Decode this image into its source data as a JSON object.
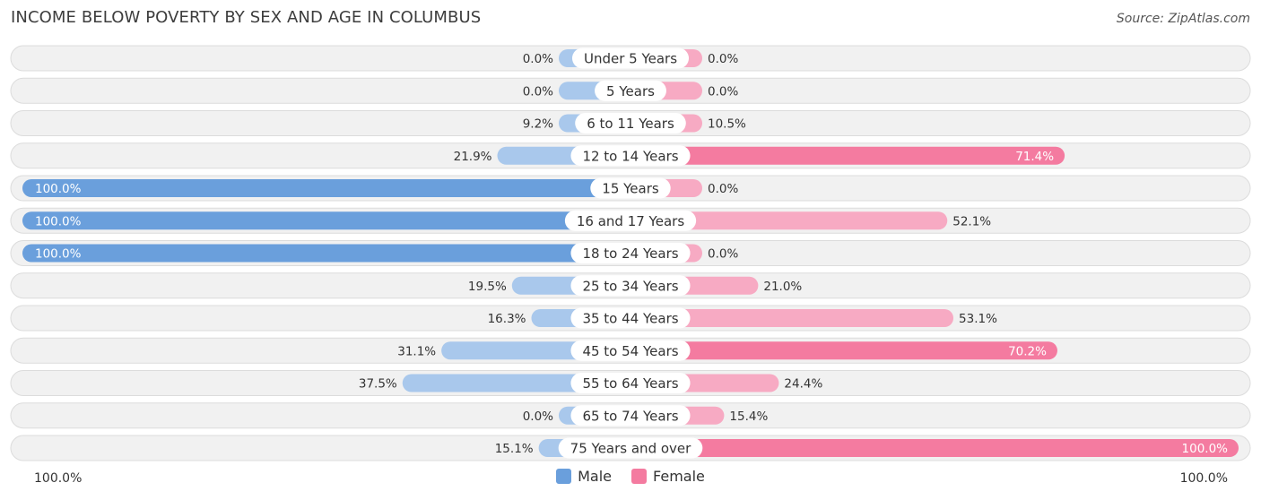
{
  "title": "INCOME BELOW POVERTY BY SEX AND AGE IN COLUMBUS",
  "source": "Source: ZipAtlas.com",
  "colors": {
    "male_strong": "#6a9fdc",
    "male_light": "#a9c8ec",
    "female_strong": "#f47ba0",
    "female_light": "#f7aac3",
    "row_bg": "#f1f1f1",
    "row_border": "#dcdcdc"
  },
  "legend": {
    "male": "Male",
    "female": "Female"
  },
  "axis": {
    "left_label": "100.0%",
    "right_label": "100.0%"
  },
  "chart_data": {
    "type": "bar",
    "orientation": "horizontal-diverging",
    "xlim": [
      0,
      100
    ],
    "categories": [
      "Under 5 Years",
      "5 Years",
      "6 to 11 Years",
      "12 to 14 Years",
      "15 Years",
      "16 and 17 Years",
      "18 to 24 Years",
      "25 to 34 Years",
      "35 to 44 Years",
      "45 to 54 Years",
      "55 to 64 Years",
      "65 to 74 Years",
      "75 Years and over"
    ],
    "series": [
      {
        "name": "Male",
        "values": [
          0.0,
          0.0,
          9.2,
          21.9,
          100.0,
          100.0,
          100.0,
          19.5,
          16.3,
          31.1,
          37.5,
          0.0,
          15.1
        ],
        "labels": [
          "0.0%",
          "0.0%",
          "9.2%",
          "21.9%",
          "100.0%",
          "100.0%",
          "100.0%",
          "19.5%",
          "16.3%",
          "31.1%",
          "37.5%",
          "0.0%",
          "15.1%"
        ]
      },
      {
        "name": "Female",
        "values": [
          0.0,
          0.0,
          10.5,
          71.4,
          0.0,
          52.1,
          0.0,
          21.0,
          53.1,
          70.2,
          24.4,
          15.4,
          100.0
        ],
        "labels": [
          "0.0%",
          "0.0%",
          "10.5%",
          "71.4%",
          "0.0%",
          "52.1%",
          "0.0%",
          "21.0%",
          "53.1%",
          "70.2%",
          "24.4%",
          "15.4%",
          "100.0%"
        ]
      }
    ],
    "legend_position": "bottom-center"
  }
}
